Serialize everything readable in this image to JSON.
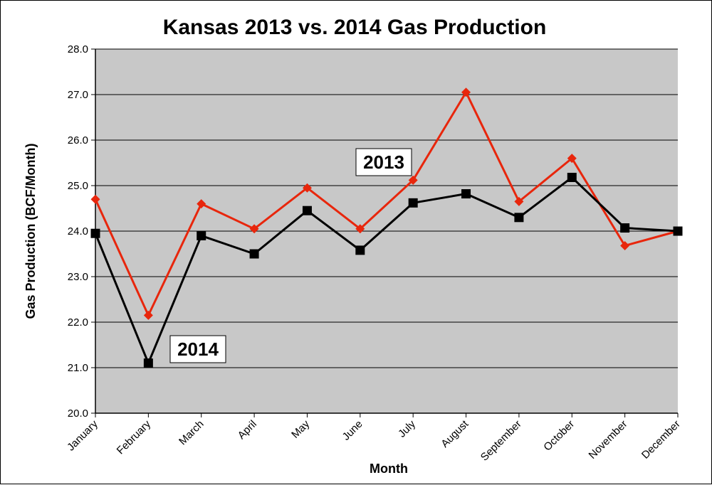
{
  "chart_data": {
    "type": "line",
    "title": "Kansas 2013 vs. 2014 Gas Production",
    "xlabel": "Month",
    "ylabel": "Gas Production (BCF/Month)",
    "ylim": [
      20.0,
      28.0
    ],
    "yticks": [
      "20.0",
      "21.0",
      "22.0",
      "23.0",
      "24.0",
      "25.0",
      "26.0",
      "27.0",
      "28.0"
    ],
    "grid": true,
    "categories": [
      "January",
      "February",
      "March",
      "April",
      "May",
      "June",
      "July",
      "August",
      "September",
      "October",
      "November",
      "December"
    ],
    "series": [
      {
        "name": "2013",
        "color": "#e8260c",
        "marker": "diamond",
        "values": [
          24.7,
          22.15,
          24.6,
          24.05,
          24.95,
          24.05,
          25.12,
          27.05,
          24.65,
          25.6,
          23.68,
          24.0
        ]
      },
      {
        "name": "2014",
        "color": "#000000",
        "marker": "square",
        "values": [
          23.95,
          21.1,
          23.9,
          23.5,
          24.45,
          23.58,
          24.62,
          24.82,
          24.3,
          25.18,
          24.07,
          24.0
        ]
      }
    ],
    "plot_background": "#c8c8c8"
  }
}
